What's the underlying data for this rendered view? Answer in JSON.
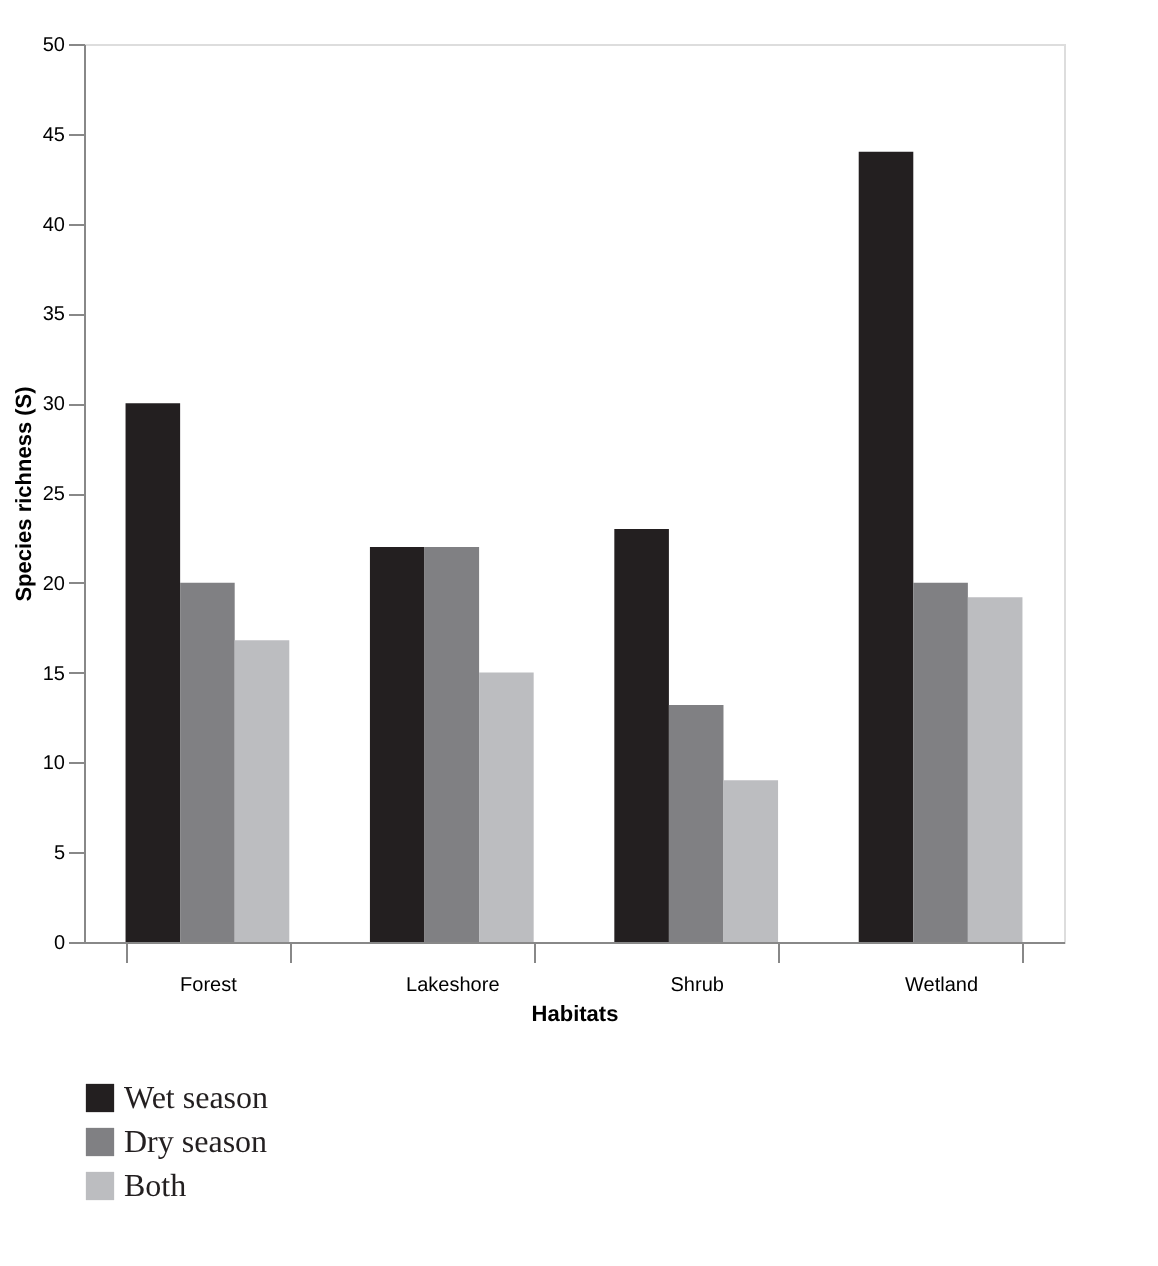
{
  "chart_data": {
    "type": "bar",
    "xlabel": "Habitats",
    "ylabel": "Species richness (S)",
    "categories": [
      "Forest",
      "Lakeshore",
      "Shrub",
      "Wetland"
    ],
    "series": [
      {
        "name": "Wet season",
        "color": "#231f20",
        "values": [
          30,
          22,
          23,
          44
        ]
      },
      {
        "name": "Dry season",
        "color": "#808083",
        "values": [
          20,
          22,
          13.2,
          20
        ]
      },
      {
        "name": "Both",
        "color": "#bcbdc0",
        "values": [
          16.8,
          15,
          9,
          19.2
        ]
      }
    ],
    "ylim": [
      0,
      50
    ],
    "yticks": [
      0,
      5,
      10,
      15,
      20,
      25,
      30,
      35,
      40,
      45,
      50
    ],
    "grid": false,
    "legend": "bottom left"
  }
}
